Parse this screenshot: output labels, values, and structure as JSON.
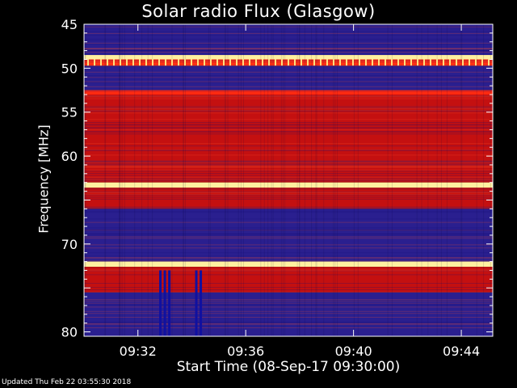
{
  "footer": "Updated Thu Feb 22 03:55:30 2018",
  "chart_data": {
    "type": "heatmap",
    "title": "Solar radio Flux (Glasgow)",
    "xlabel": "Start Time (08-Sep-17 09:30:00)",
    "ylabel": "Frequency [MHz]",
    "x_unit": "time",
    "xlim": [
      "09:30:00",
      "09:45:10"
    ],
    "ylim": [
      45,
      80.5
    ],
    "y_inverted": true,
    "x_ticks": [
      "09:32",
      "09:36",
      "09:40",
      "09:44"
    ],
    "y_ticks": [
      45,
      50,
      55,
      60,
      70,
      80
    ],
    "grid": false,
    "colormap": {
      "low": "#2a1f8f",
      "mid": "#c41010",
      "high": "#ff2a10",
      "peak": "#fff0a0"
    },
    "frequency_bands": [
      {
        "from": 45.0,
        "to": 48.5,
        "level": "low"
      },
      {
        "from": 48.5,
        "to": 49.0,
        "level": "peak"
      },
      {
        "from": 49.0,
        "to": 49.7,
        "level": "high"
      },
      {
        "from": 49.7,
        "to": 52.5,
        "level": "low"
      },
      {
        "from": 52.5,
        "to": 53.0,
        "level": "high"
      },
      {
        "from": 53.0,
        "to": 63.0,
        "level": "mid"
      },
      {
        "from": 63.0,
        "to": 63.6,
        "level": "peak"
      },
      {
        "from": 63.6,
        "to": 66.0,
        "level": "mid"
      },
      {
        "from": 66.0,
        "to": 72.0,
        "level": "low"
      },
      {
        "from": 72.0,
        "to": 72.6,
        "level": "peak"
      },
      {
        "from": 72.6,
        "to": 75.5,
        "level": "mid"
      },
      {
        "from": 75.5,
        "to": 80.5,
        "level": "low"
      }
    ],
    "bursts": [
      {
        "time": "09:32:50",
        "from": 73.0,
        "to": 80.5,
        "level": "low-dark"
      },
      {
        "time": "09:33:00",
        "from": 73.0,
        "to": 80.5,
        "level": "low-dark"
      },
      {
        "time": "09:33:10",
        "from": 73.0,
        "to": 80.5,
        "level": "low-dark"
      },
      {
        "time": "09:34:10",
        "from": 73.0,
        "to": 80.5,
        "level": "low-dark"
      },
      {
        "time": "09:34:20",
        "from": 73.0,
        "to": 80.5,
        "level": "low-dark"
      }
    ]
  }
}
